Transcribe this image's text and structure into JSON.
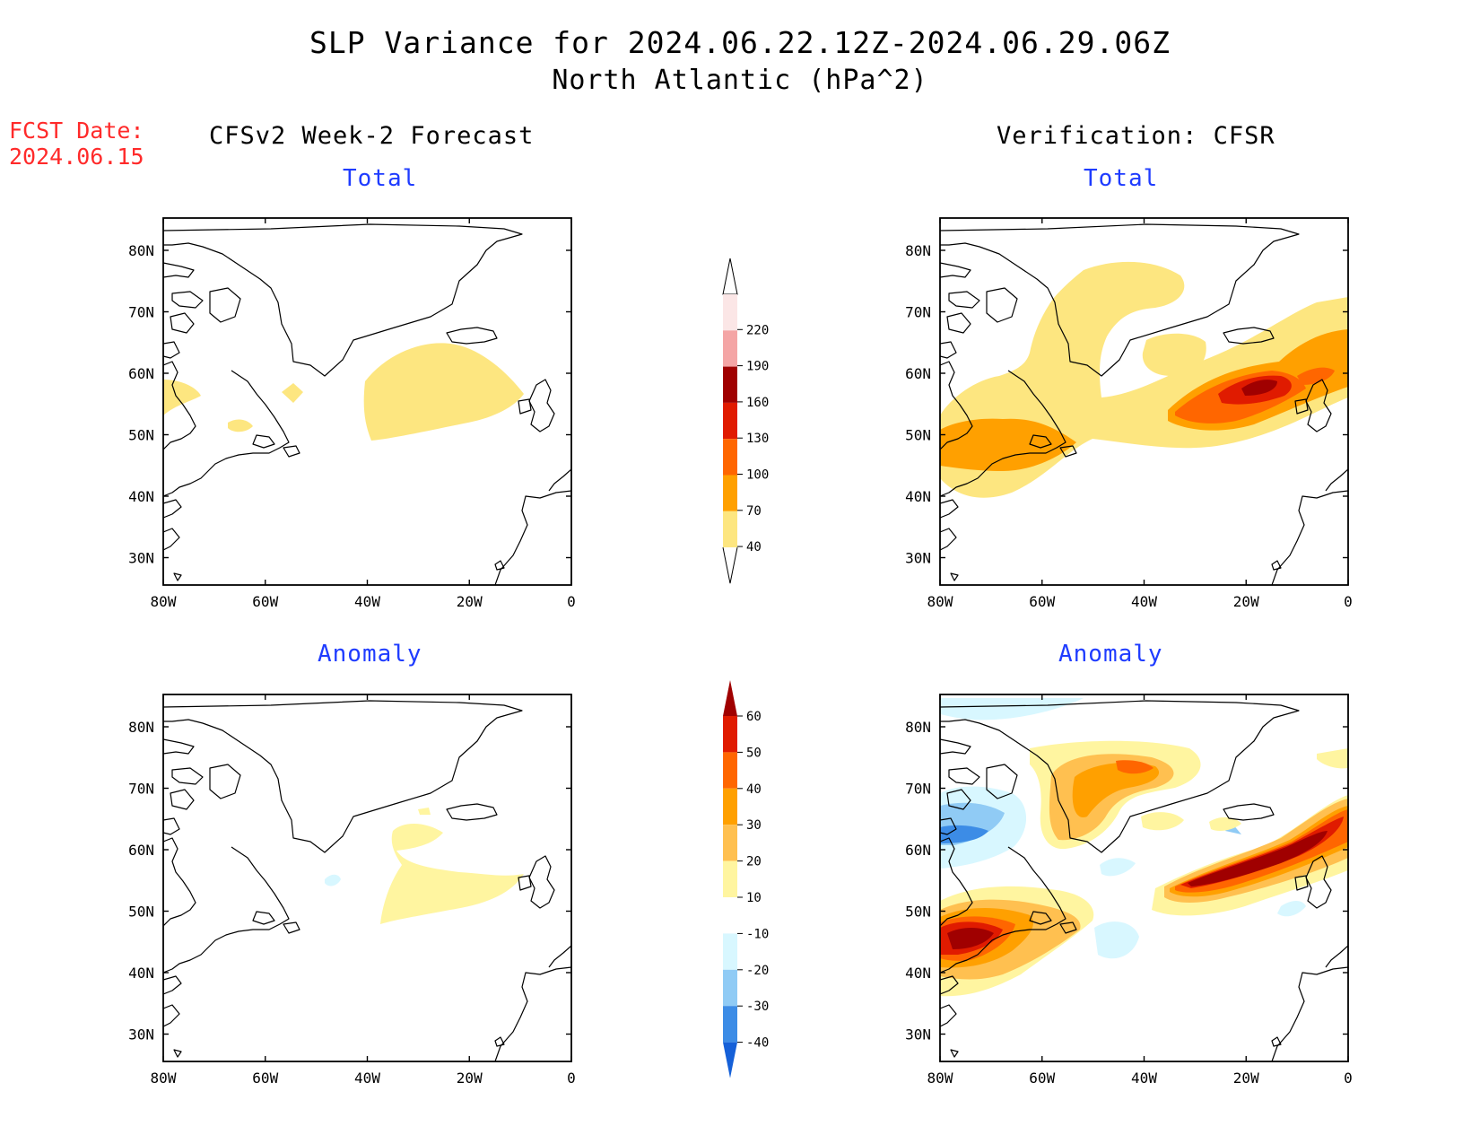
{
  "title": "SLP Variance for 2024.06.22.12Z-2024.06.29.06Z",
  "subtitle": "North Atlantic (hPa^2)",
  "fcst_date_label": "FCST Date:",
  "fcst_date_value": "2024.06.15",
  "left_column_title": "CFSv2 Week-2 Forecast",
  "right_column_title": "Verification: CFSR",
  "panel_titles": {
    "top_left": "Total",
    "top_right": "Total",
    "bottom_left": "Anomaly",
    "bottom_right": "Anomaly"
  },
  "map_axes": {
    "lon_ticks": [
      "80W",
      "60W",
      "40W",
      "20W",
      "0"
    ],
    "lat_ticks": [
      "80N",
      "70N",
      "60N",
      "50N",
      "40N",
      "30N"
    ]
  },
  "colorbars": {
    "total": {
      "levels": [
        "220",
        "190",
        "160",
        "130",
        "100",
        "70",
        "40"
      ],
      "colors": [
        "#fbe6e6",
        "#f4a5a5",
        "#a00000",
        "#e01b00",
        "#ff6600",
        "#ffa000",
        "#fde680"
      ]
    },
    "anomaly": {
      "levels": [
        "60",
        "50",
        "40",
        "30",
        "20",
        "10",
        "-10",
        "-20",
        "-30",
        "-40"
      ],
      "colors": [
        "#a00000",
        "#e01b00",
        "#ff6600",
        "#ffa000",
        "#ffc050",
        "#fff5a0",
        "#ffffff",
        "#d8f7ff",
        "#90cbf5",
        "#3c8ce6",
        "#1560d8"
      ]
    }
  },
  "chart_data": {
    "type": "contour-map",
    "region": "North Atlantic",
    "units": "hPa^2",
    "lon_range": [
      "80W",
      "0"
    ],
    "lat_range": [
      "25N",
      "85N"
    ],
    "panels": [
      "CFSv2 Week-2 Forecast Total",
      "Verification: CFSR Total",
      "CFSv2 Week-2 Forecast Anomaly",
      "Verification: CFSR Anomaly"
    ]
  }
}
